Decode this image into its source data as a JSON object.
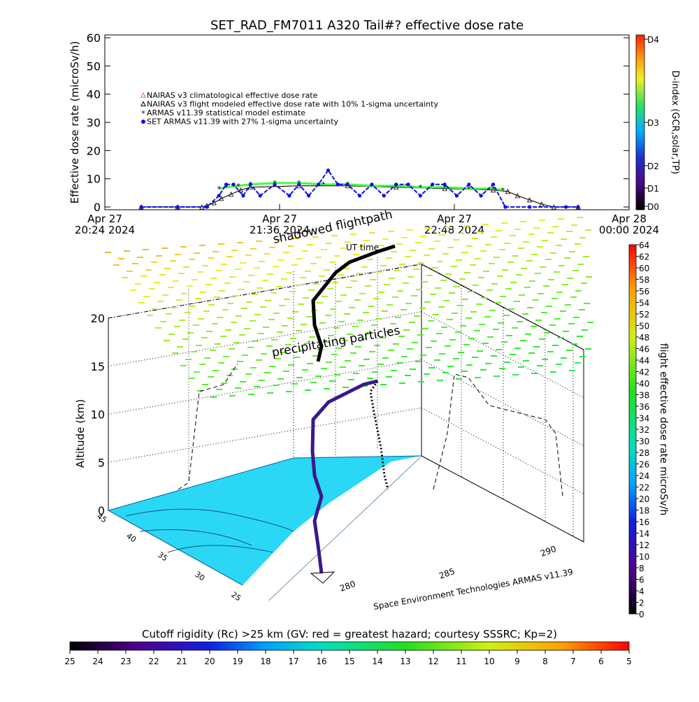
{
  "title": "SET_RAD_FM7011  A320 Tail#? effective dose rate",
  "chart_data": [
    {
      "type": "line",
      "panel": "effective dose rate time series",
      "ylabel": "Effective dose rate (microSv/h)",
      "ylim": [
        0,
        60
      ],
      "y_ticks": [
        0,
        10,
        20,
        30,
        40,
        50,
        60
      ],
      "x_ticks": [
        {
          "line1": "Apr 27",
          "line2": "20:24 2024"
        },
        {
          "line1": "Apr 27",
          "line2": "21:36 2024"
        },
        {
          "line1": "Apr 27",
          "line2": "22:48 2024"
        },
        {
          "line1": "Apr 28",
          "line2": "00:00 2024"
        }
      ],
      "x_range_minutes": [
        0,
        216
      ],
      "legend_position": "top-left",
      "legend": [
        "NAIRAS v3 climatological effective dose rate",
        "NAIRAS v3 flight modeled effective dose rate with 10% 1-sigma uncertainty",
        "ARMAS v11.39 statistical model estimate",
        "SET ARMAS v11.39 with 27% 1-sigma uncertainty"
      ],
      "series": [
        {
          "name": "NAIRAS v3 climatological effective dose rate",
          "color": "#ff6060",
          "x": [
            15,
            30,
            40,
            42,
            45,
            48,
            52,
            56,
            60,
            80,
            100,
            120,
            140,
            160,
            166,
            170,
            175,
            180,
            185,
            195
          ],
          "values": [
            0,
            0,
            0,
            0.5,
            1.5,
            3,
            4.5,
            6,
            7,
            7.5,
            7.5,
            7,
            6.5,
            6,
            5.5,
            4,
            2.5,
            1,
            0,
            0
          ]
        },
        {
          "name": "NAIRAS v3 flight modeled effective dose rate with 10% 1-sigma uncertainty",
          "color": "#000000",
          "x": [
            15,
            30,
            40,
            42,
            45,
            48,
            52,
            56,
            60,
            80,
            100,
            120,
            140,
            160,
            166,
            170,
            175,
            180,
            185,
            195
          ],
          "values": [
            0,
            0,
            0,
            0.5,
            1.5,
            3,
            4.5,
            6,
            7,
            7.5,
            7.5,
            7,
            6.5,
            6,
            5.5,
            4,
            2.5,
            1,
            0,
            0
          ]
        },
        {
          "name": "ARMAS v11.39 statistical model estimate",
          "color": "#40ff40",
          "x": [
            47,
            50,
            55,
            60,
            70,
            80,
            90,
            100,
            110,
            120,
            130,
            140,
            150,
            160,
            164
          ],
          "values": [
            6.5,
            7,
            7.5,
            8,
            8.5,
            8.5,
            8,
            8,
            7.5,
            7.5,
            7,
            7,
            6.5,
            6.5,
            6
          ]
        },
        {
          "name": "SET ARMAS v11.39 with 27% 1-sigma uncertainty",
          "color": "#1010e0",
          "x": [
            15,
            30,
            42,
            47,
            50,
            53,
            57,
            60,
            64,
            70,
            76,
            80,
            84,
            88,
            92,
            96,
            100,
            105,
            110,
            115,
            120,
            125,
            130,
            135,
            140,
            145,
            150,
            155,
            160,
            165,
            175,
            190,
            195
          ],
          "values": [
            0,
            0,
            0,
            4,
            8,
            8,
            4,
            8,
            4,
            8,
            4,
            8,
            4,
            8,
            13,
            8,
            8,
            4,
            8,
            4,
            8,
            8,
            4,
            8,
            8,
            4,
            8,
            4,
            8,
            0,
            0,
            0,
            0
          ]
        }
      ],
      "right_axis": {
        "label": "D-index (GCR,solar,TP)",
        "ticks": [
          "D0",
          "D1",
          "D2",
          "D3",
          "D4"
        ]
      }
    },
    {
      "type": "3d_trajectory",
      "panel": "flight path and cutoff rigidity",
      "zlabel": "Altitude (km)",
      "z_ticks": [
        0,
        5,
        10,
        15,
        20
      ],
      "lat_ticks": [
        "45",
        "40",
        "35",
        "30",
        "25"
      ],
      "lon_ticks": [
        "280",
        "285",
        "290"
      ],
      "annotations": [
        "shadowed flightpath",
        "UT time",
        "precipitating particles",
        "Space Environment Technologies ARMAS v11.39"
      ],
      "right_colorbar": {
        "label": "flight effective dose rate microSv/h",
        "ticks": [
          0,
          2,
          4,
          6,
          8,
          10,
          12,
          14,
          16,
          18,
          20,
          22,
          24,
          26,
          28,
          30,
          32,
          34,
          36,
          38,
          40,
          42,
          44,
          46,
          48,
          50,
          52,
          54,
          56,
          58,
          60,
          62,
          64
        ]
      },
      "bottom_colorbar": {
        "label": "Cutoff rigidity (Rc) >25 km (GV: red = greatest hazard; courtesy SSSRC; Kp=2)",
        "ticks": [
          25,
          24,
          23,
          22,
          21,
          20,
          19,
          18,
          17,
          16,
          15,
          14,
          13,
          12,
          11,
          10,
          9,
          8,
          7,
          6,
          5
        ]
      }
    }
  ]
}
